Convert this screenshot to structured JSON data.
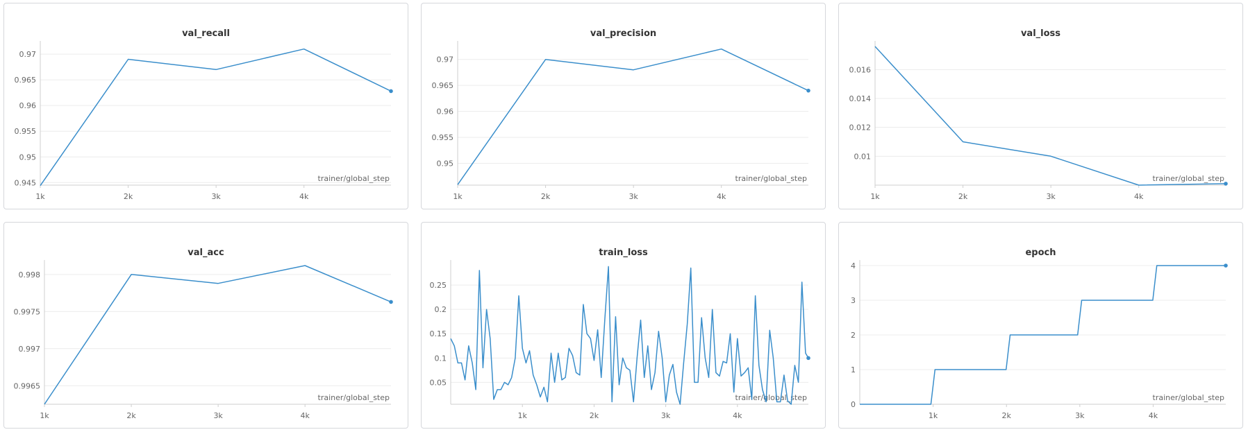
{
  "xlabel": "trainer/global_step",
  "line_color": "#3a8ecb",
  "chart_data": [
    {
      "type": "line",
      "title": "val_recall",
      "xlabel": "trainer/global_step",
      "xlim": [
        1000,
        4990
      ],
      "ylim": [
        0.9445,
        0.9715
      ],
      "x_ticks": [
        1000,
        2000,
        3000,
        4000
      ],
      "x_tick_labels": [
        "1k",
        "2k",
        "3k",
        "4k"
      ],
      "y_ticks": [
        0.945,
        0.95,
        0.955,
        0.96,
        0.965,
        0.97
      ],
      "y_tick_labels": [
        "0.945",
        "0.95",
        "0.955",
        "0.96",
        "0.965",
        "0.97"
      ],
      "series": [
        {
          "x": [
            1000,
            2000,
            3000,
            4000,
            4990
          ],
          "y": [
            0.9444,
            0.969,
            0.967,
            0.971,
            0.9628
          ]
        }
      ]
    },
    {
      "type": "line",
      "title": "val_precision",
      "xlabel": "trainer/global_step",
      "xlim": [
        1000,
        4990
      ],
      "ylim": [
        0.9458,
        0.9725
      ],
      "x_ticks": [
        1000,
        2000,
        3000,
        4000
      ],
      "x_tick_labels": [
        "1k",
        "2k",
        "3k",
        "4k"
      ],
      "y_ticks": [
        0.95,
        0.955,
        0.96,
        0.965,
        0.97
      ],
      "y_tick_labels": [
        "0.95",
        "0.955",
        "0.96",
        "0.965",
        "0.97"
      ],
      "series": [
        {
          "x": [
            1000,
            2000,
            3000,
            4000,
            4990
          ],
          "y": [
            0.9459,
            0.97,
            0.968,
            0.972,
            0.964
          ]
        }
      ]
    },
    {
      "type": "line",
      "title": "val_loss",
      "xlabel": "trainer/global_step",
      "xlim": [
        1000,
        4990
      ],
      "ylim": [
        0.008,
        0.0176
      ],
      "x_ticks": [
        1000,
        2000,
        3000,
        4000
      ],
      "x_tick_labels": [
        "1k",
        "2k",
        "3k",
        "4k"
      ],
      "y_ticks": [
        0.01,
        0.012,
        0.014,
        0.016
      ],
      "y_tick_labels": [
        "0.01",
        "0.012",
        "0.014",
        "0.016"
      ],
      "series": [
        {
          "x": [
            1000,
            2000,
            3000,
            4000,
            4990
          ],
          "y": [
            0.0176,
            0.011,
            0.01,
            0.008,
            0.0081
          ]
        }
      ]
    },
    {
      "type": "line",
      "title": "val_acc",
      "xlabel": "trainer/global_step",
      "xlim": [
        1000,
        4990
      ],
      "ylim": [
        0.99625,
        0.99812
      ],
      "x_ticks": [
        1000,
        2000,
        3000,
        4000
      ],
      "x_tick_labels": [
        "1k",
        "2k",
        "3k",
        "4k"
      ],
      "y_ticks": [
        0.9965,
        0.997,
        0.9975,
        0.998
      ],
      "y_tick_labels": [
        "0.9965",
        "0.997",
        "0.9975",
        "0.998"
      ],
      "series": [
        {
          "x": [
            1000,
            2000,
            3000,
            4000,
            4990
          ],
          "y": [
            0.99625,
            0.998,
            0.99788,
            0.99812,
            0.99763
          ]
        }
      ]
    },
    {
      "type": "line",
      "title": "train_loss",
      "xlabel": "trainer/global_step",
      "xlim": [
        0,
        4990
      ],
      "ylim": [
        0.005,
        0.29
      ],
      "x_ticks": [
        1000,
        2000,
        3000,
        4000
      ],
      "x_tick_labels": [
        "1k",
        "2k",
        "3k",
        "4k"
      ],
      "y_ticks": [
        0.05,
        0.1,
        0.15,
        0.2,
        0.25
      ],
      "y_tick_labels": [
        "0.05",
        "0.1",
        "0.15",
        "0.2",
        "0.25"
      ],
      "series": [
        {
          "x": [
            0,
            50,
            100,
            150,
            200,
            250,
            300,
            350,
            400,
            450,
            500,
            550,
            600,
            650,
            700,
            750,
            800,
            850,
            900,
            950,
            1000,
            1050,
            1100,
            1150,
            1200,
            1250,
            1300,
            1350,
            1400,
            1450,
            1500,
            1550,
            1600,
            1650,
            1700,
            1750,
            1800,
            1850,
            1900,
            1950,
            2000,
            2050,
            2100,
            2150,
            2200,
            2250,
            2300,
            2350,
            2400,
            2450,
            2500,
            2550,
            2600,
            2650,
            2700,
            2750,
            2800,
            2850,
            2900,
            2950,
            3000,
            3050,
            3100,
            3150,
            3200,
            3250,
            3300,
            3350,
            3400,
            3450,
            3500,
            3550,
            3600,
            3650,
            3700,
            3750,
            3800,
            3850,
            3900,
            3950,
            4000,
            4050,
            4100,
            4150,
            4200,
            4250,
            4300,
            4350,
            4400,
            4450,
            4500,
            4550,
            4600,
            4650,
            4700,
            4750,
            4800,
            4850,
            4900,
            4950,
            4990
          ],
          "y": [
            0.14,
            0.125,
            0.09,
            0.09,
            0.055,
            0.125,
            0.09,
            0.035,
            0.28,
            0.08,
            0.2,
            0.14,
            0.015,
            0.035,
            0.035,
            0.05,
            0.045,
            0.06,
            0.1,
            0.228,
            0.12,
            0.09,
            0.115,
            0.065,
            0.045,
            0.02,
            0.04,
            0.01,
            0.11,
            0.05,
            0.11,
            0.055,
            0.06,
            0.12,
            0.105,
            0.07,
            0.065,
            0.21,
            0.15,
            0.14,
            0.095,
            0.158,
            0.06,
            0.18,
            0.288,
            0.01,
            0.185,
            0.045,
            0.1,
            0.08,
            0.075,
            0.01,
            0.1,
            0.178,
            0.06,
            0.125,
            0.035,
            0.07,
            0.155,
            0.1,
            0.01,
            0.065,
            0.087,
            0.03,
            0.005,
            0.09,
            0.17,
            0.285,
            0.05,
            0.05,
            0.183,
            0.1,
            0.06,
            0.2,
            0.07,
            0.063,
            0.093,
            0.09,
            0.15,
            0.03,
            0.14,
            0.063,
            0.07,
            0.08,
            0.015,
            0.228,
            0.085,
            0.035,
            0.01,
            0.157,
            0.1,
            0.01,
            0.01,
            0.065,
            0.012,
            0.005,
            0.085,
            0.05,
            0.256,
            0.11,
            0.1
          ]
        }
      ]
    },
    {
      "type": "line",
      "title": "epoch",
      "xlabel": "trainer/global_step",
      "xlim": [
        0,
        4990
      ],
      "ylim": [
        0,
        4
      ],
      "x_ticks": [
        1000,
        2000,
        3000,
        4000
      ],
      "x_tick_labels": [
        "1k",
        "2k",
        "3k",
        "4k"
      ],
      "y_ticks": [
        0,
        1,
        2,
        3,
        4
      ],
      "y_tick_labels": [
        "0",
        "1",
        "2",
        "3",
        "4"
      ],
      "series": [
        {
          "x": [
            0,
            970,
            1025,
            1995,
            2050,
            2970,
            3025,
            3995,
            4050,
            4990
          ],
          "y": [
            0,
            0,
            1,
            1,
            2,
            2,
            3,
            3,
            4,
            4
          ]
        }
      ]
    }
  ]
}
